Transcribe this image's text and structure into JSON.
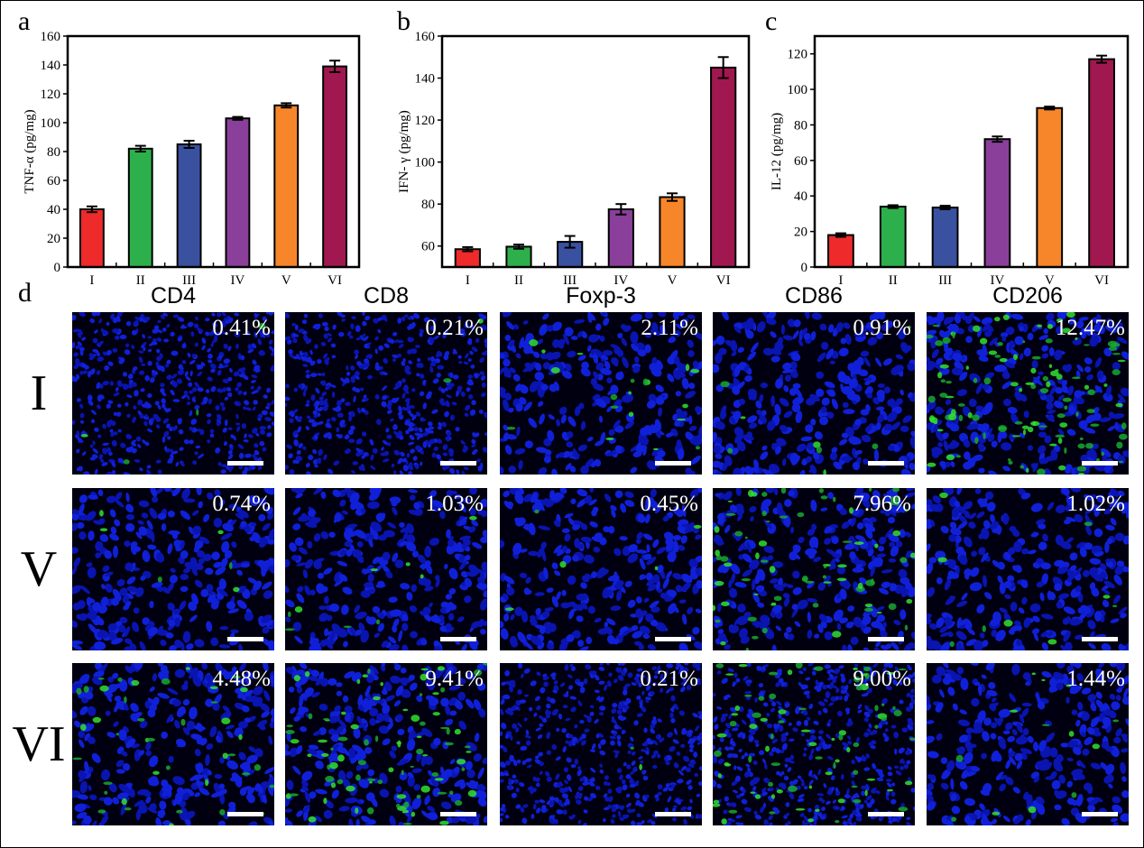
{
  "panel_letters": {
    "a": "a",
    "b": "b",
    "c": "c",
    "d": "d"
  },
  "chart_data": [
    {
      "type": "bar",
      "panel": "a",
      "categories": [
        "I",
        "II",
        "III",
        "IV",
        "V",
        "VI"
      ],
      "values": [
        40,
        82,
        85,
        103,
        112,
        139
      ],
      "errors": [
        2,
        2,
        2.5,
        1,
        1.5,
        4
      ],
      "colors": [
        "#ee2a2a",
        "#2db04c",
        "#3a51a0",
        "#8a3f9a",
        "#f7862a",
        "#a0184f"
      ],
      "ylabel": "TNF-α (pg/mg)",
      "ylim": [
        0,
        160
      ],
      "yticks": [
        0,
        20,
        40,
        60,
        80,
        100,
        120,
        140,
        160
      ]
    },
    {
      "type": "bar",
      "panel": "b",
      "categories": [
        "I",
        "II",
        "III",
        "IV",
        "V",
        "VI"
      ],
      "values": [
        58.5,
        59.7,
        62,
        77.5,
        83.3,
        145
      ],
      "errors": [
        1,
        1,
        2.8,
        2.5,
        1.8,
        5
      ],
      "colors": [
        "#ee2a2a",
        "#2db04c",
        "#3a51a0",
        "#8a3f9a",
        "#f7862a",
        "#a0184f"
      ],
      "ylabel": "IFN- γ (pg/mg)",
      "ylim": [
        50,
        160
      ],
      "yticks": [
        60,
        80,
        100,
        120,
        140,
        160
      ]
    },
    {
      "type": "bar",
      "panel": "c",
      "categories": [
        "I",
        "II",
        "III",
        "IV",
        "V",
        "VI"
      ],
      "values": [
        18,
        34,
        33.5,
        72,
        89.5,
        117
      ],
      "errors": [
        1,
        0.8,
        1,
        1.5,
        0.8,
        2
      ],
      "colors": [
        "#ee2a2a",
        "#2db04c",
        "#3a51a0",
        "#8a3f9a",
        "#f7862a",
        "#a0184f"
      ],
      "ylabel": "IL-12 (pg/mg)",
      "ylim": [
        0,
        130
      ],
      "yticks": [
        0,
        20,
        40,
        60,
        80,
        100,
        120
      ]
    }
  ],
  "fluorescence": {
    "columns": [
      "CD4",
      "CD8",
      "Foxp-3",
      "CD86",
      "CD206"
    ],
    "rows": [
      {
        "label": "I",
        "percents": [
          "0.41%",
          "0.21%",
          "2.11%",
          "0.91%",
          "12.47%"
        ],
        "green": [
          0.004,
          0.002,
          0.021,
          0.009,
          0.125
        ]
      },
      {
        "label": "V",
        "percents": [
          "0.74%",
          "1.03%",
          "0.45%",
          "7.96%",
          "1.02%"
        ],
        "green": [
          0.007,
          0.01,
          0.005,
          0.08,
          0.01
        ]
      },
      {
        "label": "VI",
        "percents": [
          "4.48%",
          "9.41%",
          "0.21%",
          "9.00%",
          "1.44%"
        ],
        "green": [
          0.045,
          0.094,
          0.002,
          0.09,
          0.014
        ]
      }
    ]
  }
}
